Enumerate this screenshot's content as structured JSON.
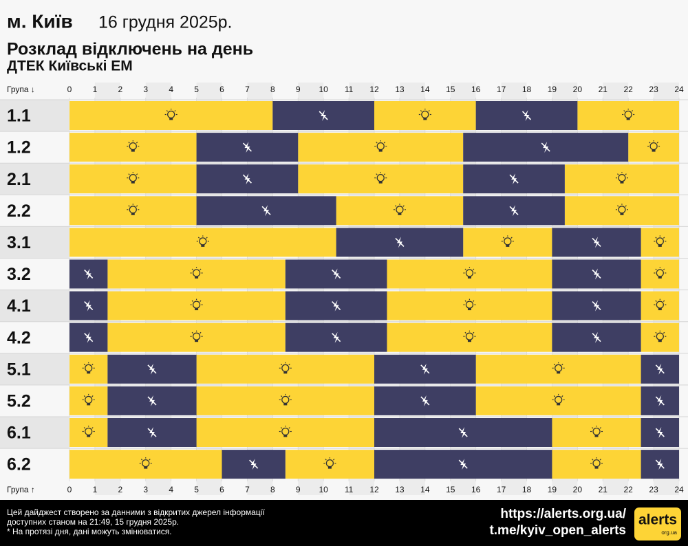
{
  "header": {
    "city": "м. Київ",
    "date": "16 грудня 2025р.",
    "title": "Розклад відключень на день",
    "subtitle": "ДТЕК Київські ЕМ"
  },
  "chart_data": {
    "type": "gantt",
    "axis_label_top": "Група ↓",
    "axis_label_bottom": "Група ↑",
    "xlim": [
      0,
      24
    ],
    "xticks": [
      0,
      1,
      2,
      3,
      4,
      5,
      6,
      7,
      8,
      9,
      10,
      11,
      12,
      13,
      14,
      15,
      16,
      17,
      18,
      19,
      20,
      21,
      22,
      23,
      24
    ],
    "on_color": "#fdd436",
    "off_color": "#3e3e63",
    "groups": [
      {
        "name": "1.1",
        "outages": [
          [
            8,
            12
          ],
          [
            16,
            20
          ]
        ]
      },
      {
        "name": "1.2",
        "outages": [
          [
            5,
            9
          ],
          [
            15.5,
            22
          ]
        ]
      },
      {
        "name": "2.1",
        "outages": [
          [
            5,
            9
          ],
          [
            15.5,
            19.5
          ]
        ]
      },
      {
        "name": "2.2",
        "outages": [
          [
            5,
            10.5
          ],
          [
            15.5,
            19.5
          ]
        ]
      },
      {
        "name": "3.1",
        "outages": [
          [
            10.5,
            15.5
          ],
          [
            19,
            22.5
          ]
        ]
      },
      {
        "name": "3.2",
        "outages": [
          [
            0,
            1.5
          ],
          [
            8.5,
            12.5
          ],
          [
            19,
            22.5
          ]
        ]
      },
      {
        "name": "4.1",
        "outages": [
          [
            0,
            1.5
          ],
          [
            8.5,
            12.5
          ],
          [
            19,
            22.5
          ]
        ]
      },
      {
        "name": "4.2",
        "outages": [
          [
            0,
            1.5
          ],
          [
            8.5,
            12.5
          ],
          [
            19,
            22.5
          ]
        ]
      },
      {
        "name": "5.1",
        "outages": [
          [
            1.5,
            5
          ],
          [
            12,
            16
          ],
          [
            22.5,
            24
          ]
        ]
      },
      {
        "name": "5.2",
        "outages": [
          [
            1.5,
            5
          ],
          [
            12,
            16
          ],
          [
            22.5,
            24
          ]
        ]
      },
      {
        "name": "6.1",
        "outages": [
          [
            1.5,
            5
          ],
          [
            12,
            19
          ],
          [
            22.5,
            24
          ]
        ]
      },
      {
        "name": "6.2",
        "outages": [
          [
            6,
            8.5
          ],
          [
            12,
            19
          ],
          [
            22.5,
            24
          ]
        ]
      }
    ]
  },
  "footer": {
    "lines": [
      "Цей дайджест створено за данними з відкритих джерел інформації",
      "доступних станом на 21:49, 15 грудня 2025р.",
      "* На протязі дня, дані можуть змінюватися."
    ],
    "url": "https://alerts.org.ua/",
    "telegram": "t.me/kyiv_open_alerts",
    "logo": "alerts",
    "logo_sub": "org.ua"
  }
}
